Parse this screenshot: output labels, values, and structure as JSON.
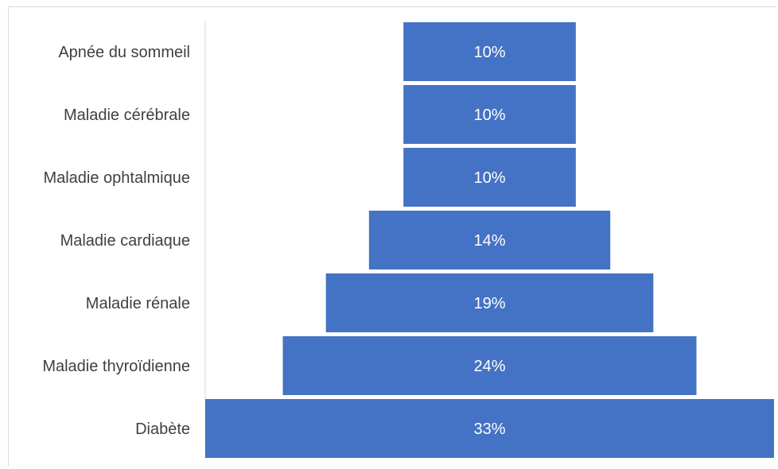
{
  "chart_data": {
    "type": "bar",
    "orientation": "horizontal-funnel",
    "categories": [
      "Apnée du sommeil",
      "Maladie cérébrale",
      "Maladie ophtalmique",
      "Maladie cardiaque",
      "Maladie rénale",
      "Maladie thyroïdienne",
      "Diabète"
    ],
    "values": [
      10,
      10,
      10,
      14,
      19,
      24,
      33
    ],
    "data_labels": [
      "10%",
      "10%",
      "10%",
      "14%",
      "19%",
      "24%",
      "33%"
    ],
    "unit": "%",
    "title": "",
    "xlabel": "",
    "ylabel": "",
    "legend": "none",
    "grid": false,
    "bar_color": "#4472c4",
    "label_color": "#ffffff",
    "category_label_color": "#404040"
  }
}
